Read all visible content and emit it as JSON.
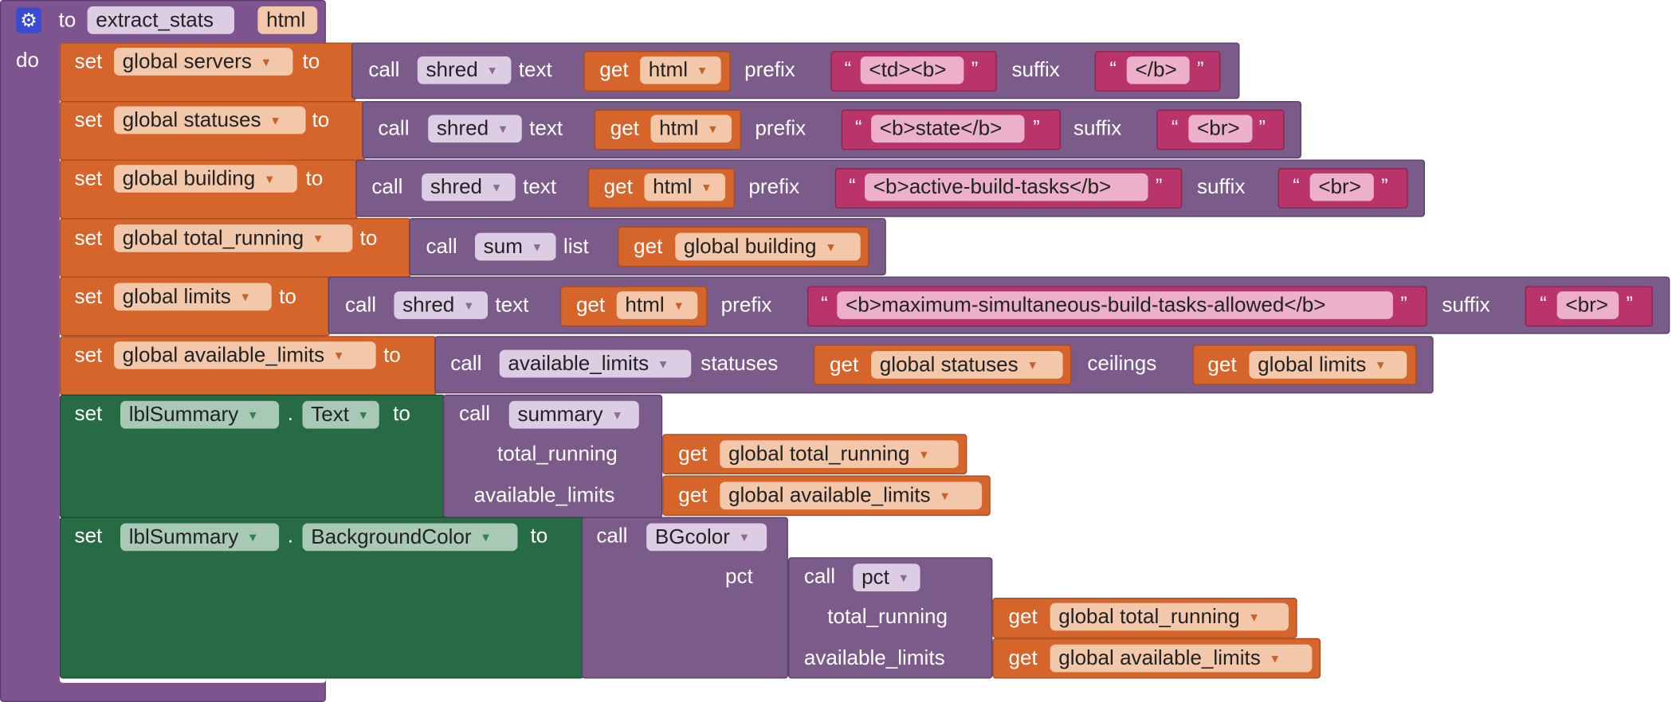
{
  "proc": {
    "to": "to",
    "name": "extract_stats",
    "param": "html",
    "do": "do"
  },
  "kw": {
    "set": "set",
    "to": "to",
    "call": "call",
    "get": "get",
    "dot": ".",
    "text": "text",
    "prefix": "prefix",
    "suffix": "suffix",
    "list": "list",
    "statuses": "statuses",
    "ceilings": "ceilings",
    "pct": "pct",
    "total_running": "total_running",
    "available_limits": "available_limits",
    "lq": "“",
    "rq": "”"
  },
  "vars": {
    "servers": "global servers",
    "statuses": "global statuses",
    "building": "global building",
    "total_running": "global total_running",
    "limits": "global limits",
    "available_limits": "global available_limits",
    "html": "html"
  },
  "procs": {
    "shred": "shred",
    "sum": "sum",
    "available_limits": "available_limits",
    "summary": "summary",
    "bgcolor": "BGcolor",
    "pct": "pct"
  },
  "components": {
    "lbl": "lblSummary",
    "text_prop": "Text",
    "bg_prop": "BackgroundColor"
  },
  "strings": {
    "td_b": "<td><b>",
    "end_b": "</b>",
    "state": "<b>state</b>",
    "br": "<br>",
    "active": "<b>active-build-tasks</b>",
    "max": "<b>maximum-simultaneous-build-tasks-allowed</b>"
  },
  "colors": {
    "procedure": "#7d5490",
    "set_global": "#d5652b",
    "set_component": "#276b45",
    "call": "#7b5b8a",
    "text": "#b8346a",
    "gear": "#3b4bd1"
  }
}
